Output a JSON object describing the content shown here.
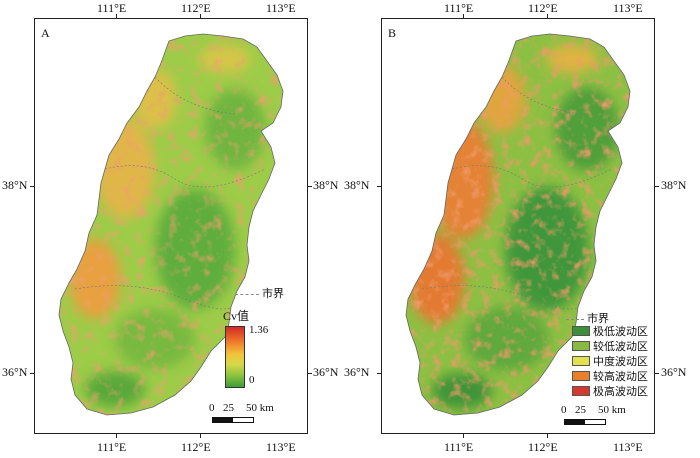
{
  "panels": [
    {
      "letter": "A",
      "x_ticks_top": [
        "111°E",
        "112°E",
        "113°E"
      ],
      "x_ticks_bottom": [
        "111°E",
        "112°E",
        "113°E"
      ],
      "y_ticks_left": [
        "38°N",
        "36°N"
      ],
      "y_ticks_right": [
        "38°N",
        "36°N"
      ],
      "boundary_label": "市界",
      "colorbar": {
        "title": "Cv值",
        "max": "1.36",
        "min": "0",
        "colors": [
          "#d42a23",
          "#ef7b2c",
          "#f2c23b",
          "#d7d94a",
          "#8ec43f",
          "#3c9f36"
        ]
      },
      "scalebar": {
        "labels": [
          "0",
          "25",
          "50 km"
        ]
      }
    },
    {
      "letter": "B",
      "x_ticks_top": [
        "111°E",
        "112°E",
        "113°E"
      ],
      "x_ticks_bottom": [
        "111°E",
        "112°E",
        "113°E"
      ],
      "y_ticks_left": [
        "38°N",
        "36°N"
      ],
      "y_ticks_right": [
        "38°N",
        "36°N"
      ],
      "boundary_label": "市界",
      "classes": [
        {
          "label": "极低波动区",
          "color": "#3d8f3a"
        },
        {
          "label": "较低波动区",
          "color": "#89b940"
        },
        {
          "label": "中度波动区",
          "color": "#e3e14c"
        },
        {
          "label": "较高波动区",
          "color": "#e97f2c"
        },
        {
          "label": "极高波动区",
          "color": "#d23a2e"
        }
      ],
      "scalebar": {
        "labels": [
          "0",
          "25",
          "50 km"
        ]
      }
    }
  ]
}
